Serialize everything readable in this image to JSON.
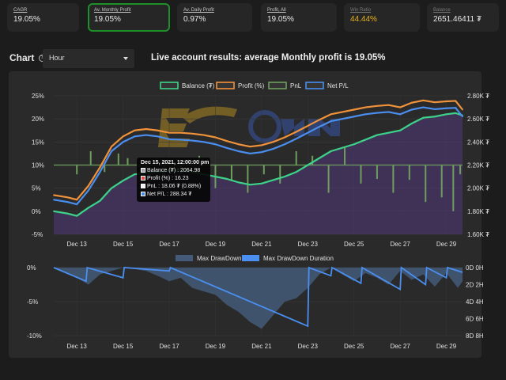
{
  "stats": [
    {
      "label": "CAGR",
      "value": "19.05%"
    },
    {
      "label": "Av. Monthly Profit",
      "value": "19.05%"
    },
    {
      "label": "Av. Daily Profit",
      "value": "0.97%"
    },
    {
      "label": "Profit, All",
      "value": "19.05%"
    },
    {
      "label": "Win Ratio",
      "value": "44.44%"
    },
    {
      "label": "Balance",
      "value": "2651.46411 ₮"
    }
  ],
  "chart_header": {
    "label": "Chart",
    "help_icon": "?",
    "interval": "Hour",
    "headline": "Live account results: average Monthly profit is 19.05%"
  },
  "colors": {
    "balance": "#3dd28a",
    "profit": "#f0923a",
    "pnl": "#6e9e5e",
    "netpl": "#4a8ff0",
    "drawdown": "#445a78",
    "drawdown_duration": "#4a8ff0",
    "active_border": "#1f8f2a",
    "win_ratio": "#e8b21c"
  },
  "chart_data": [
    {
      "type": "line",
      "legend": [
        "Balance (₮)",
        "Profit (%)",
        "PnL",
        "Net P/L"
      ],
      "x_ticks": [
        "Dec 13",
        "Dec 15",
        "Dec 17",
        "Dec 19",
        "Dec 21",
        "Dec 23",
        "Dec 25",
        "Dec 27",
        "Dec 29"
      ],
      "y_left_ticks": [
        "25%",
        "20%",
        "15%",
        "10%",
        "5%",
        "0%",
        "-5%"
      ],
      "y_right_ticks": [
        "2.80K ₮",
        "2.60K ₮",
        "2.40K ₮",
        "2.20K ₮",
        "2.00K ₮",
        "1.80K ₮",
        "1.60K ₮"
      ],
      "ylim_left": [
        -5,
        25
      ],
      "ylim_right": [
        1600,
        2800
      ],
      "series": [
        {
          "name": "Balance (₮)",
          "x": [
            12.0,
            12.6,
            13.0,
            13.5,
            14.0,
            14.5,
            15.0,
            15.5,
            16.0,
            16.5,
            17.0,
            17.5,
            18.0,
            18.5,
            19.0,
            19.5,
            20.0,
            20.5,
            21.0,
            21.5,
            22.0,
            22.5,
            23.0,
            23.5,
            24.0,
            24.5,
            25.0,
            25.5,
            26.0,
            26.5,
            27.0,
            27.5,
            28.0,
            28.5,
            29.0,
            29.4,
            29.7
          ],
          "y": [
            1800,
            1780,
            1760,
            1830,
            1890,
            2000,
            2065,
            2120,
            2130,
            2140,
            2150,
            2150,
            2140,
            2120,
            2100,
            2080,
            2050,
            2030,
            2040,
            2070,
            2100,
            2140,
            2200,
            2260,
            2320,
            2350,
            2380,
            2420,
            2460,
            2480,
            2500,
            2560,
            2610,
            2620,
            2640,
            2650,
            2630
          ]
        },
        {
          "name": "Profit (%)",
          "x": [
            12.0,
            12.6,
            13.0,
            13.5,
            14.0,
            14.5,
            15.0,
            15.5,
            16.0,
            16.5,
            17.0,
            17.5,
            18.0,
            18.5,
            19.0,
            19.5,
            20.0,
            20.5,
            21.0,
            21.5,
            22.0,
            22.5,
            23.0,
            23.5,
            24.0,
            24.5,
            25.0,
            25.5,
            26.0,
            26.5,
            27.0,
            27.5,
            28.0,
            28.5,
            29.0,
            29.4,
            29.7
          ],
          "y": [
            3.5,
            3.0,
            2.5,
            5.5,
            9.5,
            14.0,
            16.2,
            17.5,
            17.8,
            17.5,
            17.0,
            17.0,
            16.8,
            16.5,
            16.0,
            15.2,
            14.5,
            14.0,
            14.3,
            15.0,
            16.0,
            17.2,
            18.5,
            19.8,
            21.0,
            21.5,
            22.0,
            22.5,
            22.8,
            23.0,
            22.5,
            23.5,
            24.0,
            23.6,
            23.8,
            23.9,
            22.0
          ]
        },
        {
          "name": "PnL",
          "x": [
            13.0,
            13.6,
            14.2,
            14.8,
            15.2,
            16.0,
            16.8,
            17.5,
            18.3,
            19.0,
            19.7,
            20.4,
            21.1,
            21.8,
            22.5,
            23.2,
            23.9,
            24.6,
            25.3,
            26.0,
            26.7,
            27.4,
            28.1,
            28.8,
            29.3,
            29.6
          ],
          "y": [
            -2,
            3,
            -1.5,
            2.5,
            1.5,
            -1.2,
            -3,
            -2,
            2,
            -5,
            -3.5,
            -6,
            -2,
            -4,
            3,
            2,
            -6,
            4,
            -4,
            -3,
            -6,
            -3.2,
            -8,
            -7,
            -10,
            -2
          ]
        },
        {
          "name": "Net P/L",
          "x": [
            12.0,
            12.6,
            13.0,
            13.5,
            14.0,
            14.5,
            15.0,
            15.5,
            16.0,
            16.5,
            17.0,
            17.5,
            18.0,
            18.5,
            19.0,
            19.5,
            20.0,
            20.5,
            21.0,
            21.5,
            22.0,
            22.5,
            23.0,
            23.5,
            24.0,
            24.5,
            25.0,
            25.5,
            26.0,
            26.5,
            27.0,
            27.5,
            28.0,
            28.5,
            29.0,
            29.4,
            29.7
          ],
          "y": [
            2.5,
            2.0,
            1.5,
            4.5,
            8.5,
            13.0,
            15.0,
            16.2,
            16.5,
            16.2,
            15.6,
            15.5,
            15.3,
            15.0,
            14.5,
            13.7,
            13.0,
            12.5,
            12.8,
            13.5,
            14.5,
            15.7,
            17.0,
            18.3,
            19.5,
            20.0,
            20.5,
            21.0,
            21.3,
            21.5,
            21.0,
            22.0,
            22.5,
            22.1,
            22.3,
            22.4,
            20.5
          ]
        }
      ],
      "tooltip": {
        "title": "Dec 15, 2021, 12:00:00 pm",
        "rows": [
          "Balance (₮) : 2064.98",
          "Profit (%) : 16.23",
          "PnL : 18.06 ₮ (0.88%)",
          "Net P/L : 288.34 ₮"
        ]
      }
    },
    {
      "type": "area",
      "legend": [
        "Max DrawDown",
        "Max DrawDown Duration"
      ],
      "x_ticks": [
        "Dec 13",
        "Dec 15",
        "Dec 17",
        "Dec 19",
        "Dec 21",
        "Dec 23",
        "Dec 25",
        "Dec 27",
        "Dec 29"
      ],
      "y_left_ticks": [
        "0%",
        "-5%",
        "-10%"
      ],
      "y_right_ticks": [
        "0D 0H",
        "2D 2H",
        "4D 4H",
        "6D 6H",
        "8D 8H"
      ],
      "ylim_left": [
        -10,
        0
      ],
      "series": [
        {
          "name": "Max DrawDown",
          "x": [
            12.0,
            12.5,
            13.0,
            13.5,
            14.0,
            14.5,
            15.0,
            15.5,
            16.0,
            16.5,
            17.0,
            17.5,
            18.0,
            18.5,
            19.0,
            19.5,
            20.0,
            20.5,
            21.0,
            21.5,
            22.0,
            22.5,
            23.0,
            23.5,
            24.0,
            24.5,
            25.0,
            25.5,
            26.0,
            26.5,
            27.0,
            27.5,
            28.0,
            28.5,
            29.0,
            29.5,
            29.7
          ],
          "y": [
            0,
            -0.8,
            -1.5,
            -2.5,
            -1.0,
            -0.5,
            0,
            -0.2,
            -0.5,
            -1.2,
            -2.0,
            -1.5,
            -3.0,
            -3.5,
            -4.0,
            -5.5,
            -6.5,
            -8.0,
            -9.0,
            -7.0,
            -5.0,
            -4.5,
            -3.0,
            -1.0,
            0,
            -1.0,
            -2.0,
            -0.8,
            -1.5,
            -2.5,
            -0.5,
            -1.8,
            -1.0,
            -2.8,
            -0.8,
            -3.0,
            -2.0
          ]
        },
        {
          "name": "Max DrawDown Duration",
          "x": [
            12.0,
            13.4,
            13.45,
            15.0,
            15.05,
            17.0,
            17.05,
            23.0,
            23.05,
            24.0,
            24.05,
            25.3,
            25.35,
            27.0,
            27.05,
            28.1,
            28.15,
            29.0,
            29.05,
            29.7
          ],
          "y": [
            0,
            -2.0,
            0,
            -1.5,
            0,
            -0.5,
            0,
            -8.6,
            0,
            -1.2,
            0,
            -2.3,
            0,
            -3.2,
            0,
            -2.5,
            0,
            -1.5,
            0,
            -0.7
          ]
        }
      ]
    }
  ]
}
